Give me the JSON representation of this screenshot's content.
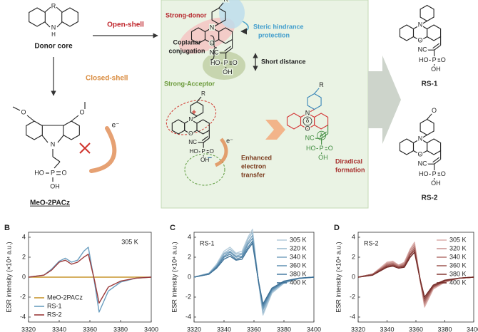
{
  "diagram": {
    "donor_core": {
      "label": "Donor core",
      "bridge": "R",
      "nitrogen": "N",
      "hydrogen": "H"
    },
    "open_shell": "Open-shell",
    "closed_shell": "Closed-shell",
    "meo_2pacz": {
      "label": "MeO-2PACz",
      "methoxy_left": "O",
      "methoxy_right": "O",
      "nitrogen": "N",
      "hydroxyl_left": "HO",
      "phosphorus": "P",
      "oxo": "O",
      "hydroxyl_bottom": "OH",
      "electron": "e⁻"
    },
    "design": {
      "strong_donor": "Strong-donor",
      "steric": [
        "Steric hindrance",
        "protection"
      ],
      "coplanar": [
        "Coplanar",
        "conjugation"
      ],
      "short_distance": "Short distance",
      "strong_acceptor": "Strong-Acceptor",
      "molecule": {
        "ring_o": "O",
        "ring_n": "N",
        "substituent": "R",
        "cyano": "NC",
        "hydroxyl_left": "HO",
        "phosphorus": "P",
        "oxo": "O",
        "hydroxyl_bottom": "OH"
      }
    },
    "transfer": {
      "lines": [
        "Enhanced",
        "electron",
        "transfer"
      ],
      "electron": "e⁻",
      "cation": "+",
      "anion": "−",
      "molecule": {
        "ring_o": "O",
        "ring_n": "N",
        "substituent": "R",
        "cyano": "NC",
        "hydroxyl_left": "HO",
        "phosphorus": "P",
        "oxo": "O",
        "hydroxyl_bottom": "OH"
      }
    },
    "diradical": {
      "lines": [
        "Diradical",
        "formation"
      ],
      "delta_donor": "δ",
      "delta_acceptor": "δ",
      "molecule": {
        "ring_o": "O",
        "ring_n": "N",
        "substituent": "R",
        "cyano": "NC",
        "hydroxyl_left": "HO",
        "phosphorus": "P",
        "oxo": "O",
        "hydroxyl_bottom": "OH"
      }
    },
    "rs1": {
      "label": "RS-1",
      "molecule": {
        "ring_o": "O",
        "ring_n": "N",
        "cyano": "NC",
        "hydroxyl_left": "HO",
        "phosphorus": "P",
        "oxo": "O",
        "hydroxyl_bottom": "OH"
      }
    },
    "rs2": {
      "label": "RS-2",
      "molecule": {
        "ring_o": "O",
        "ring_n": "N",
        "substituent": "O",
        "cyano": "NC",
        "hydroxyl_left": "HO",
        "phosphorus": "P",
        "oxo": "O",
        "hydroxyl_bottom": "OH"
      }
    }
  },
  "chart_data": [
    {
      "type": "line",
      "panel": "B",
      "annotation": "305 K",
      "ylabel": "ESR intensity (×10⁴ a.u.)",
      "x": [
        3320,
        3330,
        3335,
        3340,
        3344,
        3348,
        3352,
        3356,
        3359,
        3363,
        3366,
        3372,
        3380,
        3390,
        3400
      ],
      "xlim": [
        3320,
        3400
      ],
      "xticks": [
        3320,
        3340,
        3360,
        3380,
        3400
      ],
      "ylim": [
        -4.5,
        4.5
      ],
      "yticks": [
        -4,
        -2,
        0,
        2,
        4
      ],
      "legend": "lower left",
      "series": [
        {
          "name": "MeO-2PACz",
          "color": "#c8962e",
          "values": [
            0,
            0,
            0,
            0,
            0,
            0,
            0,
            0,
            0,
            0,
            0,
            0,
            0,
            0,
            0
          ]
        },
        {
          "name": "RS-1",
          "color": "#6a9ec0",
          "values": [
            0,
            0.2,
            0.8,
            1.6,
            1.9,
            1.5,
            1.7,
            2.6,
            3.0,
            -0.5,
            -3.5,
            -1.4,
            -0.5,
            -0.1,
            0
          ]
        },
        {
          "name": "RS-2",
          "color": "#9b3a3a",
          "values": [
            0,
            0.2,
            0.7,
            1.5,
            1.7,
            1.3,
            1.5,
            2.0,
            2.3,
            -0.3,
            -2.6,
            -1.0,
            -0.4,
            -0.1,
            0
          ]
        }
      ]
    },
    {
      "type": "line",
      "panel": "C",
      "annotation": "RS-1",
      "ylabel": "ESR intensity (×10⁴ a.u.)",
      "x": [
        3320,
        3330,
        3335,
        3340,
        3344,
        3348,
        3352,
        3356,
        3359,
        3363,
        3366,
        3372,
        3380,
        3390,
        3400
      ],
      "xlim": [
        3320,
        3400
      ],
      "xticks": [
        3320,
        3340,
        3360,
        3380,
        3400
      ],
      "ylim": [
        -4.5,
        4.5
      ],
      "yticks": [
        -4,
        -2,
        0,
        2,
        4
      ],
      "legend": "upper right",
      "series": [
        {
          "name": "305 K",
          "color": "#b9cfdd",
          "values": [
            0,
            0.4,
            1.3,
            2.6,
            3.0,
            2.4,
            2.6,
            4.0,
            4.8,
            -0.5,
            -3.8,
            -1.6,
            -0.6,
            -0.15,
            0
          ]
        },
        {
          "name": "320 K",
          "color": "#9dbcd1",
          "values": [
            0,
            0.4,
            1.2,
            2.4,
            2.8,
            2.3,
            2.4,
            3.8,
            4.5,
            -0.5,
            -3.6,
            -1.5,
            -0.6,
            -0.14,
            0
          ]
        },
        {
          "name": "340 K",
          "color": "#82a9c4",
          "values": [
            0,
            0.4,
            1.1,
            2.3,
            2.6,
            2.1,
            2.3,
            3.5,
            4.2,
            -0.4,
            -3.3,
            -1.4,
            -0.5,
            -0.13,
            0
          ]
        },
        {
          "name": "360 K",
          "color": "#6997b7",
          "values": [
            0,
            0.3,
            1.1,
            2.1,
            2.5,
            2.0,
            2.1,
            3.3,
            3.9,
            -0.4,
            -3.1,
            -1.3,
            -0.5,
            -0.12,
            0
          ]
        },
        {
          "name": "380 K",
          "color": "#5284a8",
          "values": [
            0,
            0.3,
            1.0,
            2.0,
            2.3,
            1.8,
            2.0,
            3.0,
            3.6,
            -0.4,
            -2.9,
            -1.2,
            -0.5,
            -0.11,
            0
          ]
        },
        {
          "name": "400 K",
          "color": "#3d7096",
          "values": [
            0,
            0.3,
            0.9,
            1.8,
            2.1,
            1.7,
            1.8,
            2.8,
            3.4,
            -0.4,
            -2.7,
            -1.1,
            -0.4,
            -0.1,
            0
          ]
        }
      ]
    },
    {
      "type": "line",
      "panel": "D",
      "annotation": "RS-2",
      "ylabel": "ESR intensity (×10⁴ a.u.)",
      "x": [
        3320,
        3330,
        3335,
        3340,
        3344,
        3348,
        3352,
        3356,
        3359,
        3363,
        3366,
        3372,
        3380,
        3390,
        3400
      ],
      "xlim": [
        3320,
        3400
      ],
      "xticks": [
        3320,
        3340,
        3360,
        3380,
        3400
      ],
      "ylim": [
        -4.5,
        4.5
      ],
      "yticks": [
        -4,
        -2,
        0,
        2,
        4
      ],
      "legend": "upper right",
      "series": [
        {
          "name": "305 K",
          "color": "#ddb3b0",
          "values": [
            0,
            0.3,
            0.9,
            1.5,
            1.6,
            1.2,
            1.5,
            2.8,
            3.5,
            -0.4,
            -3.0,
            -1.2,
            -0.5,
            -0.1,
            0
          ]
        },
        {
          "name": "320 K",
          "color": "#cc9894",
          "values": [
            0,
            0.3,
            0.8,
            1.4,
            1.5,
            1.2,
            1.4,
            2.7,
            3.3,
            -0.4,
            -2.8,
            -1.1,
            -0.5,
            -0.1,
            0
          ]
        },
        {
          "name": "340 K",
          "color": "#b97c78",
          "values": [
            0,
            0.3,
            0.8,
            1.3,
            1.4,
            1.1,
            1.3,
            2.5,
            3.1,
            -0.4,
            -2.6,
            -1.0,
            -0.4,
            -0.1,
            0
          ]
        },
        {
          "name": "360 K",
          "color": "#a4605c",
          "values": [
            0,
            0.3,
            0.7,
            1.2,
            1.3,
            1.0,
            1.2,
            2.3,
            2.9,
            -0.3,
            -2.4,
            -1.0,
            -0.4,
            -0.1,
            0
          ]
        },
        {
          "name": "380 K",
          "color": "#8c4440",
          "values": [
            0,
            0.2,
            0.7,
            1.1,
            1.2,
            1.0,
            1.1,
            2.2,
            2.7,
            -0.3,
            -2.2,
            -0.9,
            -0.4,
            -0.1,
            0
          ]
        },
        {
          "name": "400 K",
          "color": "#742b28",
          "values": [
            0,
            0.2,
            0.6,
            1.0,
            1.1,
            0.9,
            1.0,
            2.0,
            2.5,
            -0.3,
            -2.0,
            -0.8,
            -0.3,
            -0.1,
            0
          ]
        }
      ]
    }
  ]
}
